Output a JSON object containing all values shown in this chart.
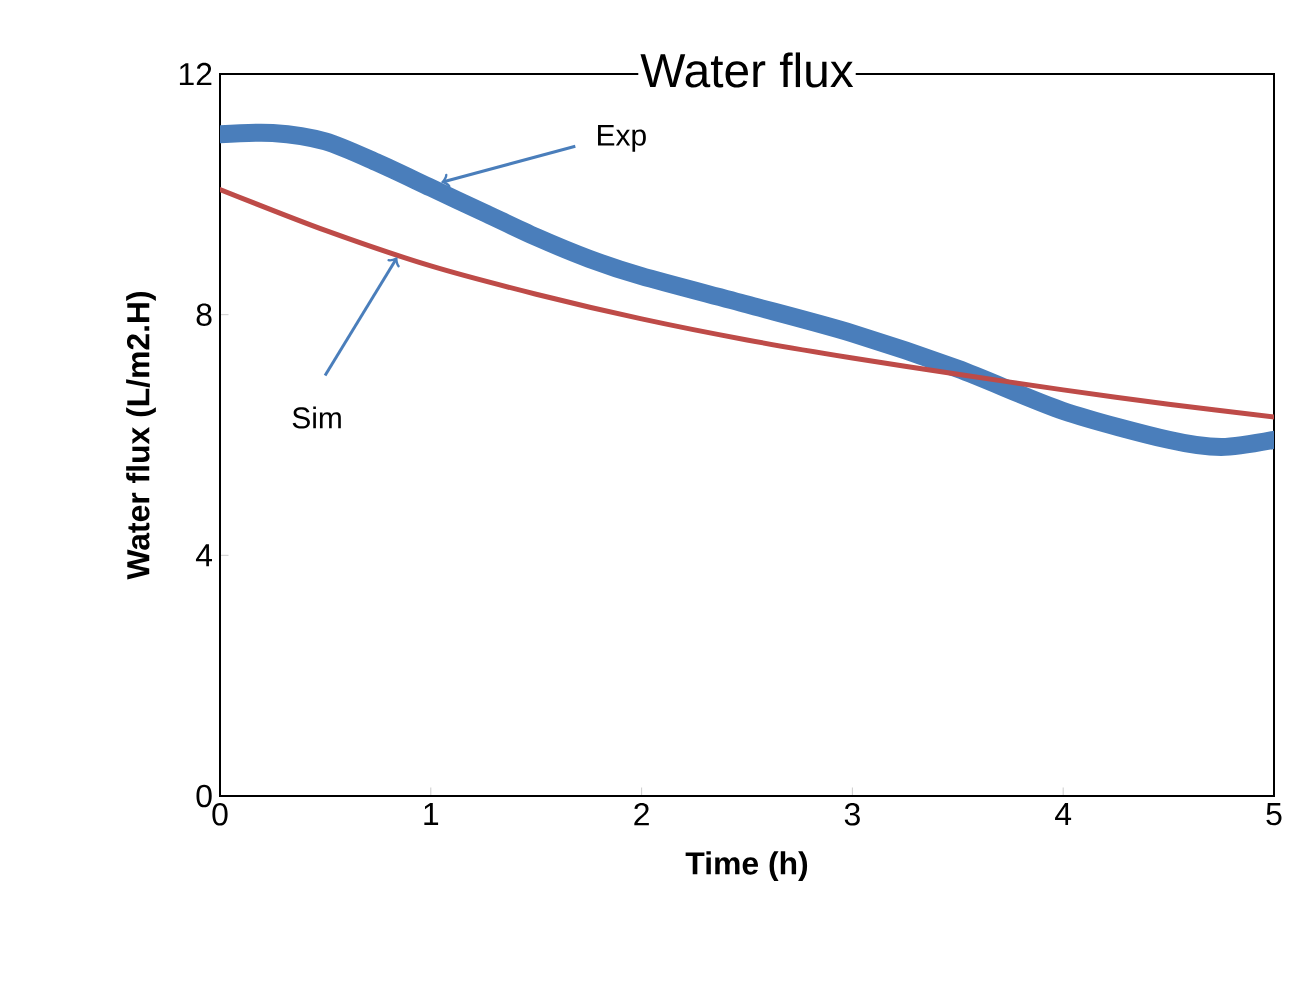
{
  "chart_data": {
    "type": "line",
    "title": "Water flux",
    "xlabel": "Time (h)",
    "ylabel": "Water flux (L/m2.H)",
    "x": [
      0,
      0.25,
      0.5,
      0.75,
      1,
      1.25,
      1.5,
      1.75,
      2,
      2.5,
      3,
      3.5,
      4,
      4.5,
      4.75,
      5
    ],
    "series": [
      {
        "color": "#4a7ebb",
        "values": [
          11.0,
          11.02,
          10.88,
          10.52,
          10.11,
          9.7,
          9.29,
          8.93,
          8.64,
          8.17,
          7.69,
          7.1,
          6.4,
          5.92,
          5.8,
          5.92
        ]
      },
      {
        "color": "#be4b48",
        "x": [
          0,
          0.5,
          1,
          1.5,
          2,
          2.5,
          3,
          3.5,
          4,
          4.5,
          5
        ],
        "values": [
          10.08,
          9.4,
          8.81,
          8.34,
          7.93,
          7.58,
          7.28,
          7.01,
          6.75,
          6.51,
          6.3
        ]
      }
    ],
    "annotations": [
      {
        "text": "Exp",
        "x": 1.05,
        "y": 10.2
      },
      {
        "text": "Sim",
        "x": 0.84,
        "y": 8.95
      }
    ],
    "xlim": [
      0,
      5
    ],
    "ylim": [
      0,
      12
    ],
    "xticks": [
      0,
      1,
      2,
      3,
      4,
      5
    ],
    "yticks": [
      0,
      4,
      8,
      12
    ],
    "grid": false
  }
}
